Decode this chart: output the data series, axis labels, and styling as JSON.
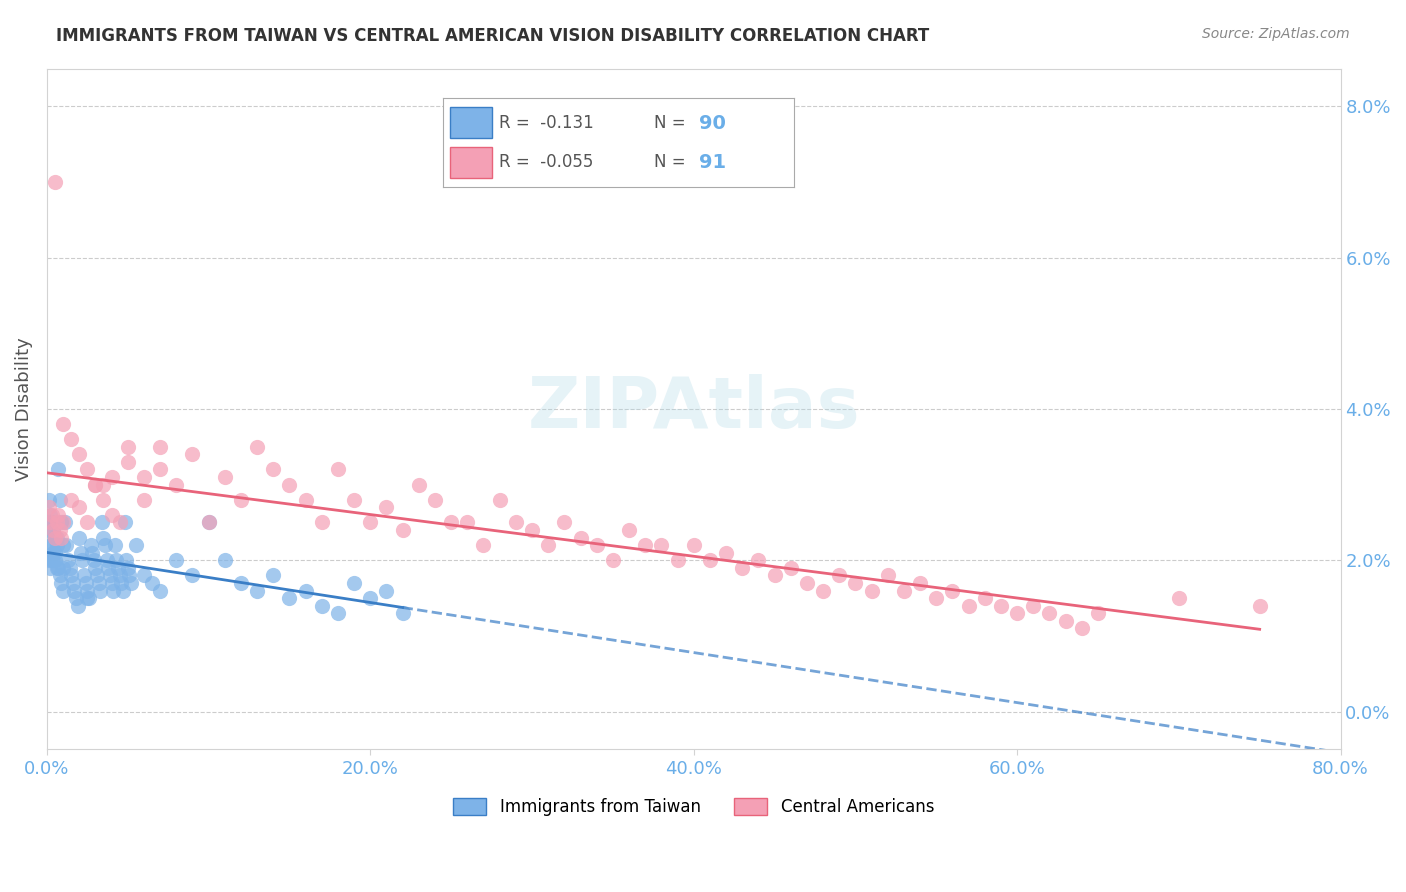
{
  "title": "IMMIGRANTS FROM TAIWAN VS CENTRAL AMERICAN VISION DISABILITY CORRELATION CHART",
  "source": "Source: ZipAtlas.com",
  "xlabel": "",
  "ylabel": "Vision Disability",
  "legend_label1": "Immigrants from Taiwan",
  "legend_label2": "Central Americans",
  "r1": -0.131,
  "n1": 90,
  "r2": -0.055,
  "n2": 91,
  "color1": "#7EB3E8",
  "color2": "#F4A0B5",
  "line_color1": "#3A7EC6",
  "line_color2": "#E8637A",
  "title_color": "#333333",
  "axis_color": "#6aaee8",
  "tick_color": "#6aaee8",
  "background_color": "#ffffff",
  "xlim": [
    0.0,
    0.8
  ],
  "ylim": [
    -0.005,
    0.085
  ],
  "yticks": [
    0.0,
    0.02,
    0.04,
    0.06,
    0.08
  ],
  "xticks": [
    0.0,
    0.2,
    0.4,
    0.6,
    0.8
  ],
  "taiwan_x": [
    0.002,
    0.003,
    0.004,
    0.005,
    0.006,
    0.007,
    0.008,
    0.009,
    0.01,
    0.011,
    0.012,
    0.013,
    0.014,
    0.015,
    0.016,
    0.017,
    0.018,
    0.019,
    0.02,
    0.021,
    0.022,
    0.023,
    0.024,
    0.025,
    0.026,
    0.027,
    0.028,
    0.029,
    0.03,
    0.031,
    0.032,
    0.033,
    0.034,
    0.035,
    0.036,
    0.037,
    0.038,
    0.039,
    0.04,
    0.041,
    0.042,
    0.043,
    0.044,
    0.045,
    0.046,
    0.047,
    0.048,
    0.049,
    0.05,
    0.051,
    0.052,
    0.055,
    0.06,
    0.065,
    0.07,
    0.08,
    0.09,
    0.1,
    0.11,
    0.12,
    0.13,
    0.14,
    0.15,
    0.16,
    0.17,
    0.18,
    0.19,
    0.2,
    0.21,
    0.22,
    0.001,
    0.001,
    0.001,
    0.002,
    0.002,
    0.002,
    0.003,
    0.003,
    0.004,
    0.004,
    0.005,
    0.005,
    0.006,
    0.006,
    0.007,
    0.008,
    0.009,
    0.01,
    0.01,
    0.025
  ],
  "taiwan_y": [
    0.025,
    0.022,
    0.02,
    0.021,
    0.023,
    0.019,
    0.018,
    0.017,
    0.016,
    0.025,
    0.022,
    0.02,
    0.019,
    0.018,
    0.017,
    0.016,
    0.015,
    0.014,
    0.023,
    0.021,
    0.02,
    0.018,
    0.017,
    0.016,
    0.015,
    0.022,
    0.021,
    0.02,
    0.019,
    0.018,
    0.017,
    0.016,
    0.025,
    0.023,
    0.022,
    0.02,
    0.019,
    0.018,
    0.017,
    0.016,
    0.022,
    0.02,
    0.019,
    0.018,
    0.017,
    0.016,
    0.025,
    0.02,
    0.019,
    0.018,
    0.017,
    0.022,
    0.018,
    0.017,
    0.016,
    0.02,
    0.018,
    0.025,
    0.02,
    0.017,
    0.016,
    0.018,
    0.015,
    0.016,
    0.014,
    0.013,
    0.017,
    0.015,
    0.016,
    0.013,
    0.028,
    0.024,
    0.02,
    0.026,
    0.022,
    0.019,
    0.025,
    0.02,
    0.024,
    0.021,
    0.023,
    0.02,
    0.022,
    0.019,
    0.032,
    0.028,
    0.025,
    0.022,
    0.019,
    0.015
  ],
  "ca_x": [
    0.001,
    0.002,
    0.003,
    0.004,
    0.005,
    0.006,
    0.007,
    0.008,
    0.009,
    0.01,
    0.015,
    0.02,
    0.025,
    0.03,
    0.035,
    0.04,
    0.045,
    0.05,
    0.06,
    0.07,
    0.08,
    0.09,
    0.1,
    0.11,
    0.12,
    0.13,
    0.14,
    0.15,
    0.16,
    0.17,
    0.18,
    0.19,
    0.2,
    0.21,
    0.22,
    0.23,
    0.24,
    0.25,
    0.26,
    0.27,
    0.28,
    0.29,
    0.3,
    0.31,
    0.32,
    0.33,
    0.34,
    0.35,
    0.36,
    0.37,
    0.38,
    0.39,
    0.4,
    0.41,
    0.42,
    0.43,
    0.44,
    0.45,
    0.46,
    0.47,
    0.48,
    0.49,
    0.5,
    0.51,
    0.52,
    0.53,
    0.54,
    0.55,
    0.56,
    0.57,
    0.58,
    0.59,
    0.6,
    0.61,
    0.62,
    0.63,
    0.64,
    0.65,
    0.7,
    0.75,
    0.005,
    0.01,
    0.015,
    0.02,
    0.025,
    0.03,
    0.035,
    0.04,
    0.05,
    0.06,
    0.07
  ],
  "ca_y": [
    0.027,
    0.025,
    0.026,
    0.024,
    0.023,
    0.025,
    0.026,
    0.024,
    0.023,
    0.025,
    0.028,
    0.027,
    0.025,
    0.03,
    0.028,
    0.026,
    0.025,
    0.035,
    0.028,
    0.032,
    0.03,
    0.034,
    0.025,
    0.031,
    0.028,
    0.035,
    0.032,
    0.03,
    0.028,
    0.025,
    0.032,
    0.028,
    0.025,
    0.027,
    0.024,
    0.03,
    0.028,
    0.025,
    0.025,
    0.022,
    0.028,
    0.025,
    0.024,
    0.022,
    0.025,
    0.023,
    0.022,
    0.02,
    0.024,
    0.022,
    0.022,
    0.02,
    0.022,
    0.02,
    0.021,
    0.019,
    0.02,
    0.018,
    0.019,
    0.017,
    0.016,
    0.018,
    0.017,
    0.016,
    0.018,
    0.016,
    0.017,
    0.015,
    0.016,
    0.014,
    0.015,
    0.014,
    0.013,
    0.014,
    0.013,
    0.012,
    0.011,
    0.013,
    0.015,
    0.014,
    0.07,
    0.038,
    0.036,
    0.034,
    0.032,
    0.03,
    0.03,
    0.031,
    0.033,
    0.031,
    0.035
  ]
}
